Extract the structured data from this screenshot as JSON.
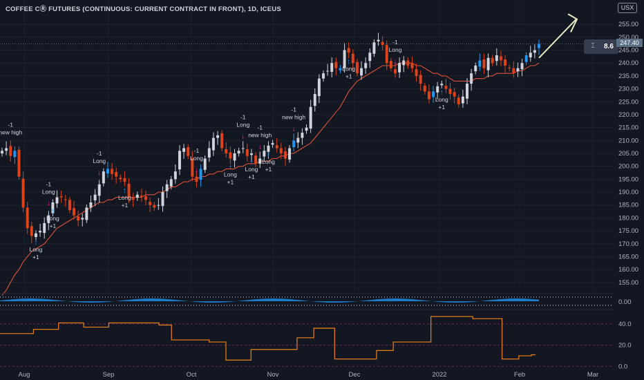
{
  "header": {
    "title": "COFFEE CⓇ FUTURES (CONTINUOUS: CURRENT CONTRACT IN FRONT), 1D, ICEUS",
    "currency": "USX"
  },
  "last_price": "247.40",
  "measure": {
    "label": "8.6"
  },
  "colors": {
    "background": "#131722",
    "up": "#d1d4dc",
    "down": "#e0421a",
    "highlight_up": "#2196f3",
    "ma": "#e0513a",
    "indicator": "#e07a1a",
    "signal_long": "#2196f3",
    "signal_exit": "#e91e9a"
  },
  "chart_data": [
    {
      "type": "candlestick",
      "title": "",
      "x_ticks": [
        "Aug",
        "Sep",
        "Oct",
        "Nov",
        "Dec",
        "2022",
        "Feb",
        "Mar"
      ],
      "y_ticks": [
        "155.00",
        "160.00",
        "165.00",
        "170.00",
        "175.00",
        "180.00",
        "185.00",
        "190.00",
        "195.00",
        "200.00",
        "205.00",
        "210.00",
        "215.00",
        "220.00",
        "225.00",
        "230.00",
        "235.00",
        "240.00",
        "245.00",
        "250.00",
        "255.00"
      ],
      "ylim": [
        152,
        258
      ],
      "series": [
        {
          "name": "",
          "values": [
            206,
            207,
            204,
            206,
            196,
            184,
            176,
            173,
            174,
            175,
            178,
            181,
            186,
            188,
            188,
            187,
            183,
            181,
            179,
            180,
            184,
            186,
            189,
            193,
            198,
            199,
            197,
            196,
            195,
            194,
            188,
            187,
            189,
            188,
            187,
            185,
            184,
            185,
            190,
            193,
            195,
            198,
            206,
            207,
            204,
            196,
            194,
            199,
            203,
            207,
            211,
            212,
            207,
            205,
            203,
            205,
            206,
            207,
            204,
            205,
            201,
            203,
            206,
            208,
            209,
            207,
            205,
            203,
            207,
            210,
            211,
            213,
            215,
            223,
            228,
            234,
            236,
            237,
            240,
            238,
            238,
            245,
            244,
            240,
            236,
            238,
            240,
            244,
            248,
            249,
            247,
            240,
            238,
            236,
            240,
            241,
            239,
            238,
            235,
            232,
            229,
            226,
            229,
            231,
            232,
            230,
            228,
            227,
            224,
            227,
            232,
            236,
            239,
            241,
            238,
            242,
            240,
            243,
            241,
            239,
            238,
            236,
            238,
            240,
            243,
            244,
            245,
            247.4
          ]
        },
        {
          "name": "",
          "values": [
            150,
            152,
            155,
            158,
            160,
            163,
            165,
            167,
            168,
            169,
            170,
            172,
            174,
            176,
            177,
            178,
            179,
            180,
            181,
            182,
            183,
            184,
            185,
            186,
            186,
            187,
            187,
            188,
            188,
            188,
            188,
            188,
            188,
            188,
            189,
            189,
            189,
            190,
            190,
            191,
            192,
            192,
            193,
            194,
            194,
            195,
            195,
            196,
            196,
            197,
            197,
            198,
            198,
            199,
            199,
            199,
            200,
            200,
            201,
            201,
            201,
            202,
            202,
            202,
            203,
            203,
            204,
            204,
            205,
            205,
            206,
            207,
            208,
            209,
            211,
            213,
            215,
            217,
            219,
            221,
            223,
            226,
            229,
            231,
            233,
            234,
            235,
            236,
            237,
            238,
            239,
            239,
            239,
            239,
            240,
            240,
            240,
            240,
            239,
            239,
            238,
            237,
            236,
            236,
            235,
            235,
            234,
            233,
            233,
            233,
            233,
            233,
            234,
            234,
            234,
            235,
            235,
            236,
            236,
            236,
            236,
            236,
            237,
            237,
            238,
            239,
            239,
            240
          ]
        }
      ],
      "signals": [
        {
          "x": "Aug",
          "labels": [
            "-1",
            "new high"
          ]
        },
        {
          "x": "Aug",
          "labels": [
            "Long",
            "+1"
          ]
        },
        {
          "x": "Aug",
          "labels": [
            "-1",
            "Long"
          ]
        },
        {
          "x": "Aug",
          "labels": [
            "Long",
            "+1"
          ]
        },
        {
          "x": "Sep",
          "labels": [
            "-1",
            "Long"
          ]
        },
        {
          "x": "Sep",
          "labels": [
            "Long",
            "+1"
          ]
        },
        {
          "x": "Oct",
          "labels": [
            "-1",
            "Long"
          ]
        },
        {
          "x": "Nov",
          "labels": [
            "Long",
            "+1"
          ]
        },
        {
          "x": "Nov",
          "labels": [
            "-1",
            "Long"
          ]
        },
        {
          "x": "Nov",
          "labels": [
            "Long",
            "+1"
          ]
        },
        {
          "x": "Nov",
          "labels": [
            "-1",
            "new high"
          ]
        },
        {
          "x": "Nov",
          "labels": [
            "Long",
            "+1"
          ]
        },
        {
          "x": "Dec",
          "labels": [
            "-1",
            "new high"
          ]
        },
        {
          "x": "2022",
          "labels": [
            "Long",
            "+1"
          ]
        },
        {
          "x": "Feb",
          "labels": [
            "-1",
            "Long"
          ]
        },
        {
          "x": "Feb",
          "labels": [
            "Long",
            "+1"
          ]
        }
      ]
    },
    {
      "type": "area",
      "title": "",
      "y_ticks": [
        "0.00"
      ],
      "series": [
        {
          "name": "",
          "values": [
            0
          ]
        }
      ]
    },
    {
      "type": "line",
      "title": "",
      "y_ticks": [
        "0.0",
        "20.0",
        "40.0"
      ],
      "ylim": [
        -3,
        51
      ],
      "series": [
        {
          "name": "",
          "values": [
            31,
            31,
            31,
            31,
            31,
            31,
            31,
            31,
            35,
            35,
            35,
            35,
            35,
            35,
            41,
            41,
            41,
            41,
            41,
            41,
            37,
            37,
            37,
            37,
            37,
            37,
            41,
            41,
            41,
            41,
            41,
            41,
            41,
            41,
            41,
            41,
            41,
            41,
            39,
            39,
            39,
            25,
            25,
            25,
            25,
            25,
            25,
            25,
            25,
            25,
            23,
            23,
            23,
            23,
            6,
            6,
            6,
            6,
            6,
            6,
            16,
            16,
            16,
            16,
            16,
            16,
            16,
            16,
            16,
            16,
            16,
            27,
            27,
            27,
            27,
            36,
            36,
            36,
            36,
            36,
            7,
            7,
            7,
            7,
            7,
            7,
            7,
            7,
            7,
            7,
            15,
            15,
            15,
            15,
            23,
            23,
            23,
            23,
            23,
            23,
            23,
            23,
            23,
            47,
            47,
            47,
            47,
            47,
            47,
            47,
            47,
            47,
            47,
            45,
            45,
            45,
            45,
            45,
            45,
            45,
            7,
            7,
            7,
            7,
            10,
            10,
            10,
            11,
            11
          ]
        }
      ]
    }
  ]
}
